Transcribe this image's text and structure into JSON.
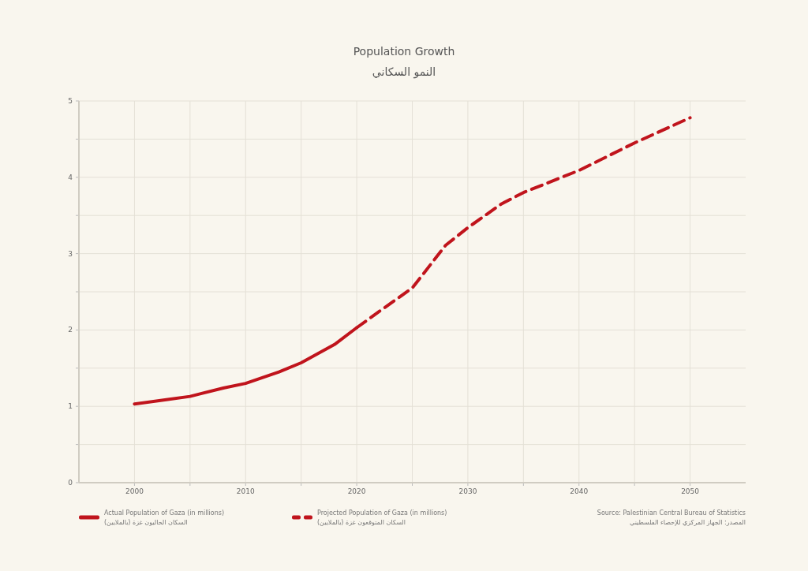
{
  "chart_data": {
    "type": "line",
    "title": "Population Growth",
    "subtitle": "النمو السكاني",
    "series": [
      {
        "name": "Actual Population of Gaza (in millions)\nالسكان الحاليون غزة (بالملايين)",
        "color": "#c0141c",
        "line_style": "solid",
        "x": [
          2000,
          2003,
          2005,
          2008,
          2010,
          2013,
          2015,
          2018,
          2020
        ],
        "values": [
          1.03,
          1.09,
          1.13,
          1.24,
          1.3,
          1.45,
          1.57,
          1.81,
          2.03
        ]
      },
      {
        "name": "Projected Population of Gaza (in millions)\nالسكان المتوقعون غزة (بالملايين)",
        "color": "#c0141c",
        "line_style": "dashed",
        "x": [
          2020,
          2022,
          2025,
          2028,
          2030,
          2033,
          2035,
          2040,
          2045,
          2050
        ],
        "values": [
          2.03,
          2.24,
          2.55,
          3.11,
          3.34,
          3.65,
          3.8,
          4.09,
          4.45,
          4.78
        ]
      }
    ],
    "xlim": [
      1995,
      2055
    ],
    "ylim": [
      0,
      5
    ],
    "xticks": [
      2000,
      {
        "value": 2005,
        "label": null
      },
      2010,
      {
        "value": 2015,
        "label": null
      },
      2020,
      {
        "value": 2025,
        "label": null
      },
      2030,
      {
        "value": 2035,
        "label": null
      },
      2040,
      {
        "value": 2045,
        "label": null
      },
      2050
    ],
    "yticks": [
      0,
      {
        "value": 0.5,
        "label": null
      },
      1,
      {
        "value": 1.5,
        "label": null
      },
      2,
      {
        "value": 2.5,
        "label": null
      },
      3,
      {
        "value": 3.5,
        "label": null
      },
      4,
      {
        "value": 4.5,
        "label": null
      },
      5
    ],
    "grid": true,
    "legend": "bottom",
    "annotations": [
      "Source: Palestinian Central Bureau of Statistics\nالمصدر: الجهاز المركزي للإحصاء الفلسطيني"
    ]
  }
}
